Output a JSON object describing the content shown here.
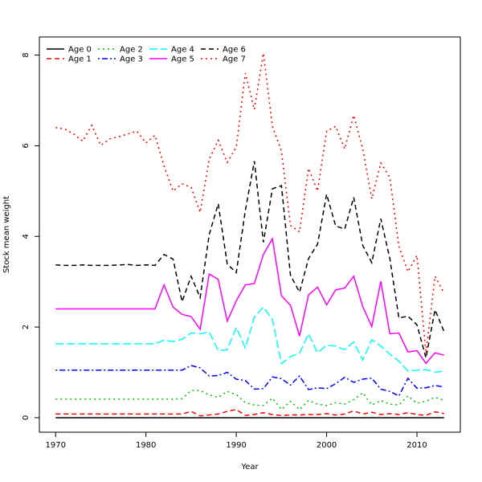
{
  "chart_data": {
    "type": "line",
    "title": "",
    "xlabel": "Year",
    "ylabel": "Stock mean weight",
    "xlim": [
      1968.2,
      2014.8
    ],
    "ylim": [
      -0.32,
      8.4
    ],
    "xticks": [
      1970,
      1980,
      1990,
      2000,
      2010
    ],
    "yticks": [
      0,
      2,
      4,
      6,
      8
    ],
    "grid": false,
    "legend_position": "top-left",
    "x": [
      1970,
      1971,
      1972,
      1973,
      1974,
      1975,
      1976,
      1977,
      1978,
      1979,
      1980,
      1981,
      1982,
      1983,
      1984,
      1985,
      1986,
      1987,
      1988,
      1989,
      1990,
      1991,
      1992,
      1993,
      1994,
      1995,
      1996,
      1997,
      1998,
      1999,
      2000,
      2001,
      2002,
      2003,
      2004,
      2005,
      2006,
      2007,
      2008,
      2009,
      2010,
      2011,
      2012,
      2013
    ],
    "series": [
      {
        "name": "Age 0",
        "color": "#000000",
        "dash": "solid",
        "values": [
          0,
          0,
          0,
          0,
          0,
          0,
          0,
          0,
          0,
          0,
          0,
          0,
          0,
          0,
          0,
          0,
          0,
          0,
          0,
          0,
          0,
          0,
          0,
          0,
          0,
          0,
          0,
          0,
          0,
          0,
          0,
          0,
          0,
          0,
          0,
          0,
          0,
          0,
          0,
          0,
          0,
          0,
          0,
          0
        ]
      },
      {
        "name": "Age 1",
        "color": "#ff0000",
        "dash": "dashed",
        "values": [
          0.08,
          0.08,
          0.08,
          0.08,
          0.08,
          0.08,
          0.08,
          0.08,
          0.08,
          0.08,
          0.08,
          0.08,
          0.08,
          0.08,
          0.08,
          0.14,
          0.04,
          0.06,
          0.08,
          0.14,
          0.18,
          0.05,
          0.07,
          0.11,
          0.07,
          0.05,
          0.06,
          0.06,
          0.07,
          0.07,
          0.09,
          0.06,
          0.08,
          0.15,
          0.08,
          0.12,
          0.07,
          0.09,
          0.07,
          0.11,
          0.07,
          0.05,
          0.13,
          0.09
        ]
      },
      {
        "name": "Age 2",
        "color": "#00c000",
        "dash": "dotted",
        "values": [
          0.41,
          0.41,
          0.41,
          0.41,
          0.41,
          0.41,
          0.41,
          0.41,
          0.41,
          0.41,
          0.41,
          0.41,
          0.41,
          0.41,
          0.42,
          0.6,
          0.6,
          0.5,
          0.45,
          0.58,
          0.51,
          0.33,
          0.28,
          0.27,
          0.43,
          0.18,
          0.36,
          0.18,
          0.38,
          0.3,
          0.27,
          0.33,
          0.3,
          0.4,
          0.55,
          0.28,
          0.38,
          0.3,
          0.28,
          0.48,
          0.32,
          0.36,
          0.45,
          0.38
        ]
      },
      {
        "name": "Age 3",
        "color": "#0000ff",
        "dash": "dotdash",
        "values": [
          1.05,
          1.05,
          1.05,
          1.05,
          1.05,
          1.05,
          1.05,
          1.05,
          1.05,
          1.05,
          1.05,
          1.05,
          1.05,
          1.05,
          1.05,
          1.15,
          1.1,
          0.92,
          0.93,
          1.0,
          0.85,
          0.82,
          0.63,
          0.64,
          0.9,
          0.86,
          0.72,
          0.92,
          0.62,
          0.66,
          0.64,
          0.75,
          0.89,
          0.78,
          0.85,
          0.87,
          0.63,
          0.58,
          0.48,
          0.87,
          0.65,
          0.66,
          0.71,
          0.68
        ]
      },
      {
        "name": "Age 4",
        "color": "#00ffff",
        "dash": "longdash",
        "values": [
          1.63,
          1.63,
          1.63,
          1.63,
          1.63,
          1.63,
          1.63,
          1.63,
          1.63,
          1.63,
          1.63,
          1.63,
          1.71,
          1.68,
          1.73,
          1.87,
          1.85,
          1.89,
          1.48,
          1.5,
          1.99,
          1.54,
          2.22,
          2.44,
          2.17,
          1.19,
          1.35,
          1.42,
          1.85,
          1.43,
          1.6,
          1.58,
          1.5,
          1.67,
          1.27,
          1.72,
          1.58,
          1.4,
          1.25,
          1.03,
          1.05,
          1.06,
          1.0,
          1.03
        ]
      },
      {
        "name": "Age 5",
        "color": "#ff00ff",
        "dash": "solid",
        "values": [
          2.4,
          2.4,
          2.4,
          2.4,
          2.4,
          2.4,
          2.4,
          2.4,
          2.4,
          2.4,
          2.4,
          2.4,
          2.93,
          2.44,
          2.28,
          2.23,
          1.95,
          3.17,
          3.05,
          2.13,
          2.58,
          2.93,
          2.96,
          3.6,
          3.95,
          2.69,
          2.48,
          1.8,
          2.71,
          2.88,
          2.49,
          2.82,
          2.86,
          3.12,
          2.45,
          2.01,
          3.01,
          1.85,
          1.87,
          1.45,
          1.48,
          1.2,
          1.43,
          1.38
        ]
      },
      {
        "name": "Age 6",
        "color": "#000000",
        "dash": "dashed",
        "values": [
          3.37,
          3.36,
          3.36,
          3.37,
          3.36,
          3.36,
          3.36,
          3.37,
          3.38,
          3.36,
          3.37,
          3.36,
          3.6,
          3.5,
          2.56,
          3.12,
          2.65,
          4.04,
          4.72,
          3.39,
          3.2,
          4.57,
          5.66,
          3.87,
          5.05,
          5.12,
          3.14,
          2.77,
          3.51,
          3.83,
          4.93,
          4.23,
          4.16,
          4.86,
          3.8,
          3.42,
          4.39,
          3.51,
          2.2,
          2.24,
          2.05,
          1.32,
          2.38,
          1.9
        ]
      },
      {
        "name": "Age 7",
        "color": "#ff0000",
        "dash": "dotted",
        "values": [
          6.4,
          6.37,
          6.26,
          6.1,
          6.45,
          6.01,
          6.15,
          6.2,
          6.26,
          6.32,
          6.06,
          6.23,
          5.55,
          5.0,
          5.16,
          5.08,
          4.53,
          5.7,
          6.12,
          5.63,
          5.97,
          7.6,
          6.8,
          8.04,
          6.43,
          5.88,
          4.24,
          4.1,
          5.5,
          5.0,
          6.32,
          6.43,
          5.93,
          6.67,
          5.93,
          4.83,
          5.62,
          5.3,
          3.78,
          3.22,
          3.58,
          1.42,
          3.12,
          2.75
        ]
      }
    ]
  }
}
